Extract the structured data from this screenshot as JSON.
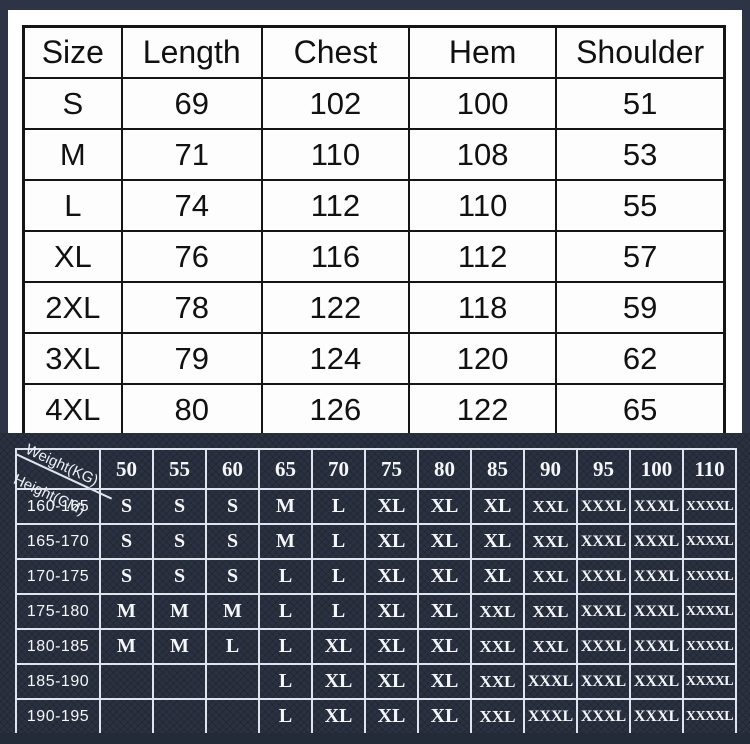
{
  "colors": {
    "background_navy": "#2c3445",
    "dark_panel": "#2a3140",
    "panel_white": "#ffffff",
    "spec_table_line": "#151515",
    "fit_grid_line": "#dfe5ee",
    "spec_text": "#111111",
    "fit_text": "#f4f6fa"
  },
  "measurement_table": {
    "headers": [
      "Size",
      "Length",
      "Chest",
      "Hem",
      "Shoulder"
    ],
    "rows": [
      [
        "S",
        "69",
        "102",
        "100",
        "51"
      ],
      [
        "M",
        "71",
        "110",
        "108",
        "53"
      ],
      [
        "L",
        "74",
        "112",
        "110",
        "55"
      ],
      [
        "XL",
        "76",
        "116",
        "112",
        "57"
      ],
      [
        "2XL",
        "78",
        "122",
        "118",
        "59"
      ],
      [
        "3XL",
        "79",
        "124",
        "120",
        "62"
      ],
      [
        "4XL",
        "80",
        "126",
        "122",
        "65"
      ]
    ]
  },
  "fit_table": {
    "corner": {
      "weight_label": "Weight(KG)",
      "height_label": "Height(CM)"
    },
    "weight_headers": [
      "50",
      "55",
      "60",
      "65",
      "70",
      "75",
      "80",
      "85",
      "90",
      "95",
      "100",
      "110"
    ],
    "rows": [
      {
        "height_range": "160-165",
        "sizes": [
          "S",
          "S",
          "S",
          "M",
          "L",
          "XL",
          "XL",
          "XL",
          "XXL",
          "XXXL",
          "XXXL",
          "XXXXL"
        ]
      },
      {
        "height_range": "165-170",
        "sizes": [
          "S",
          "S",
          "S",
          "M",
          "L",
          "XL",
          "XL",
          "XL",
          "XXL",
          "XXXL",
          "XXXL",
          "XXXXL"
        ]
      },
      {
        "height_range": "170-175",
        "sizes": [
          "S",
          "S",
          "S",
          "L",
          "L",
          "XL",
          "XL",
          "XL",
          "XXL",
          "XXXL",
          "XXXL",
          "XXXXL"
        ]
      },
      {
        "height_range": "175-180",
        "sizes": [
          "M",
          "M",
          "M",
          "L",
          "L",
          "XL",
          "XL",
          "XXL",
          "XXL",
          "XXXL",
          "XXXL",
          "XXXXL"
        ]
      },
      {
        "height_range": "180-185",
        "sizes": [
          "M",
          "M",
          "L",
          "L",
          "XL",
          "XL",
          "XL",
          "XXL",
          "XXL",
          "XXXL",
          "XXXL",
          "XXXXL"
        ]
      },
      {
        "height_range": "185-190",
        "sizes": [
          "",
          "",
          "",
          "L",
          "XL",
          "XL",
          "XL",
          "XXL",
          "XXXL",
          "XXXL",
          "XXXL",
          "XXXXL"
        ]
      },
      {
        "height_range": "190-195",
        "sizes": [
          "",
          "",
          "",
          "L",
          "XL",
          "XL",
          "XL",
          "XXL",
          "XXXL",
          "XXXL",
          "XXXL",
          "XXXXL"
        ]
      }
    ]
  }
}
